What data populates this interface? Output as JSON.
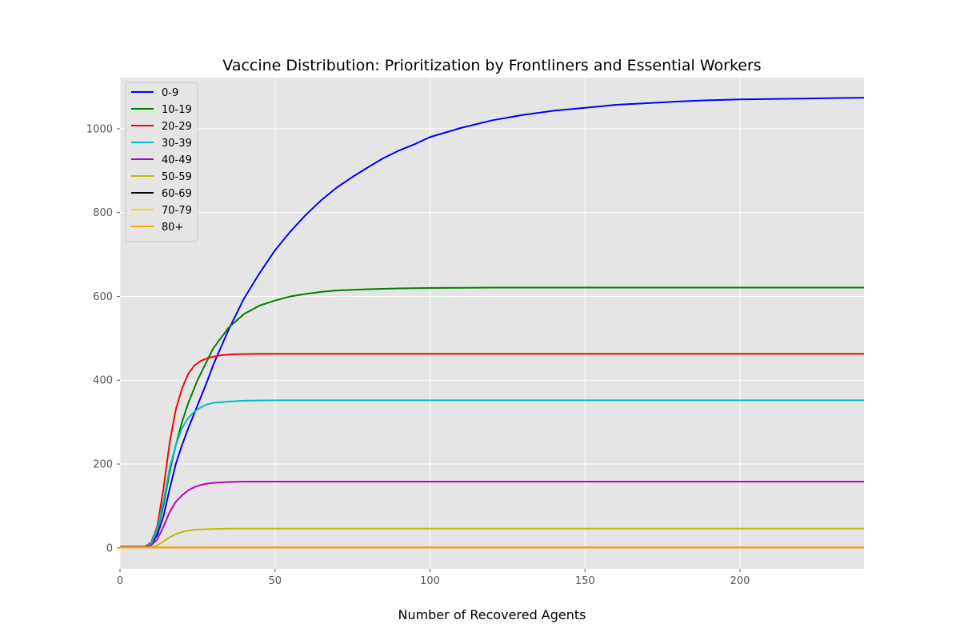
{
  "chart_data": {
    "type": "line",
    "title": "Vaccine Distribution: Prioritization by Frontliners and Essential Workers",
    "xlabel": "Number of Recovered Agents",
    "ylabel": "",
    "xlim": [
      0,
      240
    ],
    "ylim": [
      -50,
      1122
    ],
    "xticks": [
      0,
      50,
      100,
      150,
      200
    ],
    "yticks": [
      0,
      200,
      400,
      600,
      800,
      1000
    ],
    "grid": true,
    "legend_position": "top-left",
    "style": "ggplot",
    "colors": {
      "plot_background": "#e5e5e5",
      "grid": "#ffffff"
    },
    "series": [
      {
        "name": "0-9",
        "color": "#0000ff",
        "points": [
          [
            0,
            3
          ],
          [
            8,
            3
          ],
          [
            10,
            8
          ],
          [
            12,
            30
          ],
          [
            14,
            75
          ],
          [
            16,
            140
          ],
          [
            18,
            200
          ],
          [
            20,
            245
          ],
          [
            22,
            285
          ],
          [
            25,
            340
          ],
          [
            28,
            395
          ],
          [
            30,
            435
          ],
          [
            35,
            520
          ],
          [
            40,
            595
          ],
          [
            45,
            655
          ],
          [
            50,
            710
          ],
          [
            55,
            755
          ],
          [
            60,
            795
          ],
          [
            65,
            830
          ],
          [
            70,
            860
          ],
          [
            75,
            885
          ],
          [
            80,
            908
          ],
          [
            85,
            930
          ],
          [
            90,
            948
          ],
          [
            95,
            963
          ],
          [
            100,
            980
          ],
          [
            110,
            1002
          ],
          [
            120,
            1020
          ],
          [
            130,
            1033
          ],
          [
            140,
            1043
          ],
          [
            150,
            1050
          ],
          [
            160,
            1057
          ],
          [
            170,
            1061
          ],
          [
            180,
            1065
          ],
          [
            190,
            1068
          ],
          [
            200,
            1070
          ],
          [
            210,
            1071
          ],
          [
            220,
            1072
          ],
          [
            230,
            1073
          ],
          [
            240,
            1074
          ]
        ]
      },
      {
        "name": "10-19",
        "color": "#008000",
        "points": [
          [
            0,
            3
          ],
          [
            8,
            3
          ],
          [
            10,
            10
          ],
          [
            12,
            40
          ],
          [
            14,
            100
          ],
          [
            16,
            180
          ],
          [
            18,
            245
          ],
          [
            20,
            300
          ],
          [
            22,
            345
          ],
          [
            25,
            400
          ],
          [
            28,
            445
          ],
          [
            30,
            475
          ],
          [
            35,
            525
          ],
          [
            40,
            558
          ],
          [
            45,
            578
          ],
          [
            50,
            590
          ],
          [
            55,
            600
          ],
          [
            60,
            606
          ],
          [
            65,
            611
          ],
          [
            70,
            614
          ],
          [
            80,
            617
          ],
          [
            90,
            619
          ],
          [
            100,
            620
          ],
          [
            120,
            621
          ],
          [
            150,
            621
          ],
          [
            200,
            621
          ],
          [
            240,
            621
          ]
        ]
      },
      {
        "name": "20-29",
        "color": "#ff0000",
        "points": [
          [
            0,
            3
          ],
          [
            8,
            3
          ],
          [
            10,
            12
          ],
          [
            12,
            50
          ],
          [
            14,
            140
          ],
          [
            16,
            250
          ],
          [
            18,
            330
          ],
          [
            20,
            380
          ],
          [
            22,
            415
          ],
          [
            24,
            435
          ],
          [
            26,
            446
          ],
          [
            28,
            452
          ],
          [
            30,
            456
          ],
          [
            33,
            460
          ],
          [
            37,
            462
          ],
          [
            45,
            463
          ],
          [
            60,
            463
          ],
          [
            100,
            463
          ],
          [
            150,
            463
          ],
          [
            240,
            463
          ]
        ]
      },
      {
        "name": "30-39",
        "color": "#00bfbf",
        "points": [
          [
            0,
            3
          ],
          [
            8,
            3
          ],
          [
            10,
            10
          ],
          [
            12,
            45
          ],
          [
            14,
            110
          ],
          [
            16,
            190
          ],
          [
            18,
            245
          ],
          [
            20,
            285
          ],
          [
            22,
            310
          ],
          [
            24,
            325
          ],
          [
            26,
            335
          ],
          [
            28,
            342
          ],
          [
            30,
            346
          ],
          [
            35,
            349
          ],
          [
            40,
            351
          ],
          [
            50,
            352
          ],
          [
            70,
            352
          ],
          [
            100,
            352
          ],
          [
            150,
            352
          ],
          [
            240,
            352
          ]
        ]
      },
      {
        "name": "40-49",
        "color": "#bf00bf",
        "points": [
          [
            0,
            3
          ],
          [
            8,
            3
          ],
          [
            10,
            6
          ],
          [
            12,
            20
          ],
          [
            14,
            50
          ],
          [
            16,
            85
          ],
          [
            18,
            110
          ],
          [
            20,
            125
          ],
          [
            22,
            137
          ],
          [
            24,
            145
          ],
          [
            26,
            150
          ],
          [
            28,
            153
          ],
          [
            30,
            155
          ],
          [
            35,
            157
          ],
          [
            40,
            158
          ],
          [
            50,
            158
          ],
          [
            70,
            158
          ],
          [
            100,
            158
          ],
          [
            150,
            158
          ],
          [
            240,
            158
          ]
        ]
      },
      {
        "name": "50-59",
        "color": "#bfbf00",
        "points": [
          [
            0,
            2
          ],
          [
            10,
            2
          ],
          [
            12,
            6
          ],
          [
            14,
            15
          ],
          [
            16,
            25
          ],
          [
            18,
            33
          ],
          [
            20,
            38
          ],
          [
            22,
            41
          ],
          [
            24,
            43
          ],
          [
            26,
            44
          ],
          [
            30,
            45
          ],
          [
            35,
            46
          ],
          [
            40,
            46
          ],
          [
            60,
            46
          ],
          [
            100,
            46
          ],
          [
            150,
            46
          ],
          [
            240,
            46
          ]
        ]
      },
      {
        "name": "60-69",
        "color": "#000000",
        "points": [
          [
            0,
            1
          ],
          [
            240,
            1
          ]
        ]
      },
      {
        "name": "70-79",
        "color": "#ffd700",
        "points": [
          [
            0,
            1
          ],
          [
            240,
            1
          ]
        ]
      },
      {
        "name": "80+",
        "color": "#ffa500",
        "points": [
          [
            0,
            1
          ],
          [
            240,
            1
          ]
        ]
      }
    ]
  }
}
